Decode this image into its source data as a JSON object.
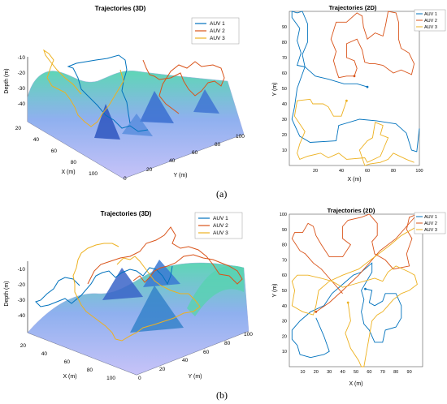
{
  "panels": [
    {
      "label": "(a)",
      "charts": {
        "3d": {
          "title": "Trajectories (3D)",
          "xlabel": "X (m)",
          "ylabel": "Y (m)",
          "zlabel": "Depth (m)",
          "xticks": [
            20,
            40,
            60,
            80,
            100
          ],
          "yticks": [
            0,
            20,
            40,
            60,
            80,
            100
          ],
          "zticks": [
            -10,
            -20,
            -30,
            -40
          ]
        },
        "2d": {
          "title": "Trajectories (2D)",
          "xlabel": "X (m)",
          "ylabel": "Y (m)",
          "xticks": [
            20,
            40,
            60,
            80,
            100
          ],
          "yticks": [
            10,
            20,
            30,
            40,
            50,
            60,
            70,
            80,
            90
          ]
        }
      }
    },
    {
      "label": "(b)",
      "charts": {
        "3d": {
          "title": "Trajectories (3D)",
          "xlabel": "X (m)",
          "ylabel": "Y (m)",
          "zlabel": "Depth (m)",
          "xticks": [
            20,
            40,
            60,
            80,
            100
          ],
          "yticks": [
            0,
            20,
            40,
            60,
            80,
            100
          ],
          "zticks": [
            -10,
            -20,
            -30,
            -40
          ]
        },
        "2d": {
          "title": "Trajectories (2D)",
          "xlabel": "X (m)",
          "ylabel": "Y (m)",
          "xticks": [
            10,
            20,
            30,
            40,
            50,
            60,
            70,
            80,
            90
          ],
          "yticks": [
            10,
            20,
            30,
            40,
            50,
            60,
            70,
            80,
            90,
            100
          ]
        }
      }
    }
  ],
  "chart_data": [
    {
      "type": "line",
      "panel": "(a)",
      "title": "Trajectories (2D)",
      "xlabel": "X (m)",
      "ylabel": "Y (m)",
      "xlim": [
        0,
        100
      ],
      "ylim": [
        0,
        100
      ],
      "legend": "top-right",
      "series": [
        {
          "name": "AUV 1",
          "color": "#0072BD",
          "points": [
            [
              60,
              51
            ],
            [
              52,
              53
            ],
            [
              42,
              53
            ],
            [
              30,
              56
            ],
            [
              20,
              58
            ],
            [
              12,
              64
            ],
            [
              10,
              72
            ],
            [
              14,
              80
            ],
            [
              14,
              92
            ],
            [
              10,
              100
            ],
            [
              6,
              99
            ],
            [
              2,
              100
            ],
            [
              2,
              96
            ],
            [
              8,
              89
            ],
            [
              6,
              81
            ],
            [
              9,
              73
            ],
            [
              6,
              65
            ],
            [
              12,
              64
            ],
            [
              6,
              50
            ],
            [
              4,
              38
            ],
            [
              2,
              30
            ],
            [
              8,
              19
            ],
            [
              16,
              15
            ],
            [
              36,
              16
            ],
            [
              38,
              26
            ],
            [
              54,
              30
            ],
            [
              67,
              29
            ],
            [
              82,
              27
            ],
            [
              90,
              21
            ],
            [
              94,
              10
            ],
            [
              98,
              9
            ],
            [
              100,
              24
            ]
          ]
        },
        {
          "name": "AUV 2",
          "color": "#D95319",
          "points": [
            [
              50,
              58
            ],
            [
              44,
              58
            ],
            [
              38,
              57
            ],
            [
              36,
              62
            ],
            [
              34,
              68
            ],
            [
              36,
              74
            ],
            [
              32,
              82
            ],
            [
              36,
              93
            ],
            [
              44,
              93
            ],
            [
              52,
              99
            ],
            [
              56,
              97
            ],
            [
              57,
              90
            ],
            [
              60,
              82
            ],
            [
              66,
              86
            ],
            [
              72,
              84
            ],
            [
              74,
              91
            ],
            [
              76,
              100
            ],
            [
              82,
              99
            ],
            [
              84,
              93
            ],
            [
              84,
              82
            ],
            [
              86,
              76
            ],
            [
              92,
              73
            ],
            [
              96,
              66
            ],
            [
              94,
              59
            ],
            [
              86,
              62
            ],
            [
              80,
              60
            ],
            [
              72,
              65
            ],
            [
              66,
              66
            ],
            [
              62,
              66
            ],
            [
              58,
              67
            ],
            [
              56,
              75
            ],
            [
              52,
              82
            ],
            [
              44,
              79
            ],
            [
              44,
              70
            ],
            [
              50,
              68
            ],
            [
              52,
              63
            ],
            [
              50,
              58
            ]
          ]
        },
        {
          "name": "AUV 3",
          "color": "#EDB120",
          "points": [
            [
              44,
              42
            ],
            [
              40,
              32
            ],
            [
              34,
              32
            ],
            [
              30,
              38
            ],
            [
              26,
              40
            ],
            [
              18,
              40
            ],
            [
              16,
              43
            ],
            [
              6,
              42
            ],
            [
              4,
              32
            ],
            [
              12,
              22
            ],
            [
              8,
              14
            ],
            [
              6,
              8
            ],
            [
              8,
              4
            ],
            [
              14,
              6
            ],
            [
              24,
              8
            ],
            [
              30,
              5
            ],
            [
              38,
              8
            ],
            [
              44,
              4
            ],
            [
              58,
              5
            ],
            [
              60,
              2
            ],
            [
              70,
              6
            ],
            [
              72,
              10
            ],
            [
              76,
              18
            ],
            [
              70,
              20
            ],
            [
              72,
              26
            ],
            [
              66,
              28
            ],
            [
              64,
              18
            ],
            [
              60,
              16
            ],
            [
              54,
              10
            ],
            [
              58,
              0
            ],
            [
              62,
              1
            ],
            [
              70,
              2
            ],
            [
              76,
              4
            ],
            [
              80,
              8
            ],
            [
              90,
              4
            ],
            [
              96,
              2
            ]
          ]
        }
      ]
    },
    {
      "type": "line",
      "panel": "(b)",
      "title": "Trajectories (2D)",
      "xlabel": "X (m)",
      "ylabel": "Y (m)",
      "xlim": [
        0,
        100
      ],
      "ylim": [
        0,
        100
      ],
      "legend": "top-right",
      "series": [
        {
          "name": "AUV 1",
          "color": "#0072BD",
          "points": [
            [
              57,
              51
            ],
            [
              62,
              50
            ],
            [
              60,
              42
            ],
            [
              64,
              40
            ],
            [
              70,
              43
            ],
            [
              72,
              48
            ],
            [
              80,
              48
            ],
            [
              84,
              40
            ],
            [
              84,
              32
            ],
            [
              80,
              26
            ],
            [
              72,
              24
            ],
            [
              70,
              16
            ],
            [
              64,
              16
            ],
            [
              62,
              20
            ],
            [
              60,
              24
            ],
            [
              56,
              28
            ],
            [
              54,
              36
            ],
            [
              56,
              44
            ],
            [
              54,
              50
            ],
            [
              58,
              56
            ],
            [
              62,
              62
            ],
            [
              62,
              68
            ],
            [
              54,
              62
            ],
            [
              48,
              60
            ],
            [
              40,
              54
            ],
            [
              32,
              48
            ],
            [
              26,
              40
            ],
            [
              16,
              36
            ],
            [
              8,
              30
            ],
            [
              2,
              24
            ],
            [
              2,
              18
            ],
            [
              6,
              14
            ],
            [
              8,
              8
            ],
            [
              16,
              6
            ],
            [
              26,
              8
            ],
            [
              30,
              10
            ],
            [
              26,
              20
            ],
            [
              20,
              32
            ]
          ]
        },
        {
          "name": "AUV 2",
          "color": "#D95319",
          "points": [
            [
              20,
              36
            ],
            [
              30,
              42
            ],
            [
              40,
              50
            ],
            [
              52,
              60
            ],
            [
              60,
              68
            ],
            [
              68,
              76
            ],
            [
              80,
              84
            ],
            [
              92,
              96
            ],
            [
              96,
              100
            ],
            [
              90,
              98
            ],
            [
              88,
              90
            ],
            [
              92,
              84
            ],
            [
              88,
              74
            ],
            [
              90,
              66
            ],
            [
              78,
              64
            ],
            [
              72,
              70
            ],
            [
              64,
              74
            ],
            [
              62,
              82
            ],
            [
              66,
              86
            ],
            [
              66,
              94
            ],
            [
              60,
              100
            ],
            [
              54,
              98
            ],
            [
              44,
              96
            ],
            [
              40,
              92
            ],
            [
              40,
              84
            ],
            [
              46,
              80
            ],
            [
              40,
              72
            ],
            [
              30,
              72
            ],
            [
              24,
              80
            ],
            [
              20,
              86
            ],
            [
              18,
              92
            ],
            [
              14,
              94
            ],
            [
              10,
              88
            ],
            [
              4,
              88
            ],
            [
              2,
              84
            ],
            [
              8,
              76
            ],
            [
              12,
              74
            ],
            [
              18,
              68
            ],
            [
              24,
              64
            ],
            [
              30,
              58
            ],
            [
              34,
              54
            ],
            [
              40,
              48
            ]
          ]
        },
        {
          "name": "AUV 3",
          "color": "#EDB120",
          "points": [
            [
              44,
              42
            ],
            [
              46,
              30
            ],
            [
              42,
              22
            ],
            [
              46,
              12
            ],
            [
              52,
              4
            ],
            [
              54,
              0
            ],
            [
              56,
              0
            ],
            [
              58,
              10
            ],
            [
              60,
              20
            ],
            [
              62,
              30
            ],
            [
              66,
              34
            ],
            [
              70,
              36
            ],
            [
              74,
              40
            ],
            [
              78,
              44
            ],
            [
              84,
              48
            ],
            [
              90,
              50
            ],
            [
              96,
              54
            ],
            [
              94,
              60
            ],
            [
              90,
              62
            ],
            [
              80,
              66
            ],
            [
              74,
              62
            ],
            [
              70,
              56
            ],
            [
              64,
              58
            ],
            [
              56,
              56
            ],
            [
              48,
              54
            ],
            [
              40,
              52
            ],
            [
              32,
              56
            ],
            [
              24,
              58
            ],
            [
              14,
              60
            ],
            [
              6,
              60
            ],
            [
              2,
              56
            ],
            [
              4,
              50
            ],
            [
              2,
              40
            ],
            [
              10,
              36
            ],
            [
              18,
              34
            ],
            [
              20,
              40
            ],
            [
              22,
              50
            ],
            [
              30,
              56
            ],
            [
              40,
              60
            ],
            [
              52,
              64
            ],
            [
              64,
              72
            ],
            [
              76,
              80
            ],
            [
              84,
              86
            ],
            [
              92,
              90
            ],
            [
              96,
              92
            ]
          ]
        }
      ]
    }
  ]
}
